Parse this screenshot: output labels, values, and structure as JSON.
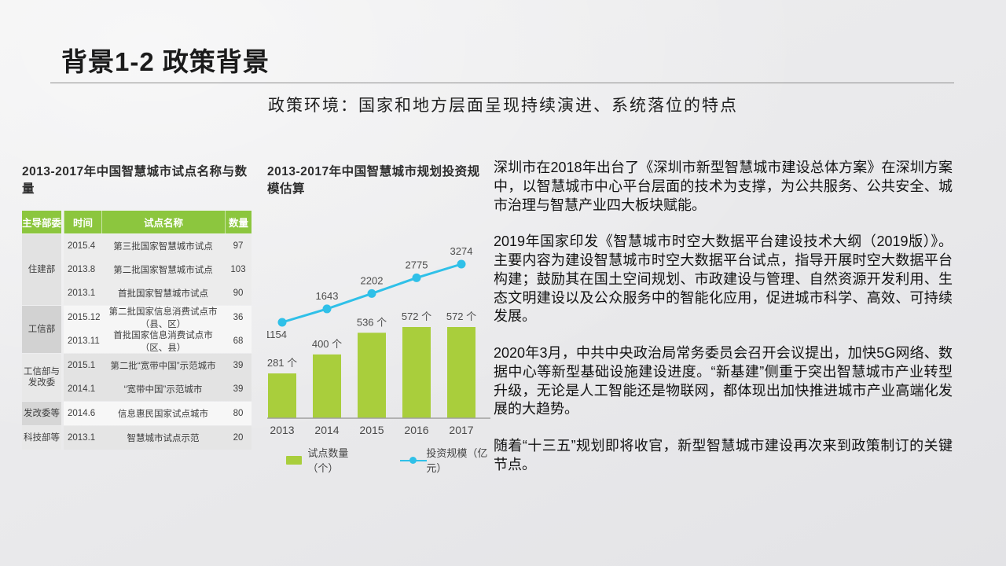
{
  "slide": {
    "title": "背景1-2 政策背景",
    "subtitle": "政策环境：国家和地方层面呈现持续演进、系统落位的特点"
  },
  "colors": {
    "table_header_green": "#8cc63e",
    "bar_green": "#a9ce3c",
    "line_cyan": "#2fc0e8",
    "axis_gray": "#9f9f9f"
  },
  "table": {
    "title": "2013-2017年中国智慧城市试点名称与数量",
    "headers": [
      "主导部委",
      "时间",
      "试点名称",
      "数量"
    ],
    "groups": [
      {
        "ministry": "住建部",
        "rows": [
          [
            "2015.4",
            "第三批国家智慧城市试点",
            "97"
          ],
          [
            "2013.8",
            "第二批国家智慧城市试点",
            "103"
          ],
          [
            "2013.1",
            "首批国家智慧城市试点",
            "90"
          ]
        ]
      },
      {
        "ministry": "工信部",
        "rows": [
          [
            "2015.12",
            "第二批国家信息消费试点市（县、区）",
            "36"
          ],
          [
            "2013.11",
            "首批国家信息消费试点市（区、县）",
            "68"
          ]
        ]
      },
      {
        "ministry": "工信部与发改委",
        "rows": [
          [
            "2015.1",
            "第二批“宽带中国”示范城市",
            "39"
          ],
          [
            "2014.1",
            "“宽带中国”示范城市",
            "39"
          ]
        ]
      },
      {
        "ministry": "发改委等",
        "rows": [
          [
            "2014.6",
            "信息惠民国家试点城市",
            "80"
          ]
        ]
      },
      {
        "ministry": "科技部等",
        "rows": [
          [
            "2013.1",
            "智慧城市试点示范",
            "20"
          ]
        ]
      }
    ]
  },
  "chart_data": {
    "type": "bar",
    "combo": "bar+line",
    "title": "2013-2017年中国智慧城市规划投资规模估算",
    "categories": [
      "2013",
      "2014",
      "2015",
      "2016",
      "2017"
    ],
    "series": [
      {
        "name": "试点数量（个）",
        "type": "bar",
        "values": [
          281,
          400,
          536,
          572,
          572
        ],
        "labels": [
          "281 个",
          "400 个",
          "536 个",
          "572 个",
          "572 个"
        ],
        "color": "#a9ce3c"
      },
      {
        "name": "投资规模（亿元）",
        "type": "line",
        "values": [
          1154,
          1643,
          2202,
          2775,
          3274
        ],
        "labels": [
          "1154",
          "1643",
          "2202",
          "2775",
          "3274"
        ],
        "color": "#2fc0e8"
      }
    ],
    "legend_position": "bottom",
    "grid": false,
    "ylabel": "",
    "xlabel": ""
  },
  "paragraphs": [
    "深圳市在2018年出台了《深圳市新型智慧城市建设总体方案》在深圳方案中，以智慧城市中心平台层面的技术为支撑，为公共服务、公共安全、城市治理与智慧产业四大板块赋能。",
    "2019年国家印发《智慧城市时空大数据平台建设技术大纲（2019版）》。主要内容为建设智慧城市时空大数据平台试点，指导开展时空大数据平台构建；鼓励其在国土空间规划、市政建设与管理、自然资源开发利用、生态文明建设以及公众服务中的智能化应用，促进城市科学、高效、可持续发展。",
    "2020年3月，中共中央政治局常务委员会召开会议提出，加快5G网络、数据中心等新型基础设施建设进度。“新基建”侧重于突出智慧城市产业转型升级，无论是人工智能还是物联网，都体现出加快推进城市产业高端化发展的大趋势。",
    "随着“十三五”规划即将收官，新型智慧城市建设再次来到政策制订的关键节点。"
  ]
}
